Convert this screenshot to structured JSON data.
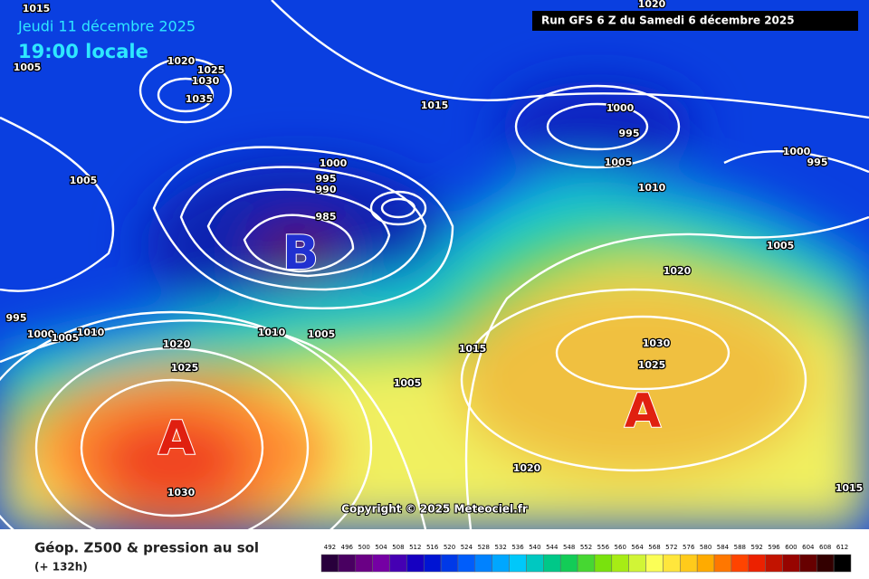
{
  "header": {
    "date": "Jeudi 11 décembre 2025",
    "time": "19:00 locale",
    "run": "Run GFS 6 Z du Samedi 6 décembre 2025"
  },
  "isobar_labels": [
    1015,
    1005,
    1020,
    1025,
    1030,
    1035,
    1005,
    1015,
    1000,
    995,
    1005,
    1000,
    995,
    990,
    985,
    1010,
    1000,
    995,
    1005,
    1020,
    995,
    1000,
    1005,
    1010,
    1020,
    1025,
    1010,
    1005,
    1015,
    1030,
    1025,
    1005,
    1020,
    1030,
    1015,
    1020
  ],
  "pressure_centers": [
    "B",
    "A",
    "A"
  ],
  "copyright": "Copyright © 2025 Meteociel.fr",
  "footer": {
    "title": "Géop. Z500 & pression au sol",
    "lead_time": "(+ 132h)"
  },
  "legend": {
    "scale": [
      492,
      496,
      500,
      504,
      508,
      512,
      516,
      520,
      524,
      528,
      532,
      536,
      540,
      544,
      548,
      552,
      556,
      560,
      564,
      568,
      572,
      576,
      580,
      584,
      588,
      592,
      596,
      600,
      604,
      608,
      612
    ]
  }
}
